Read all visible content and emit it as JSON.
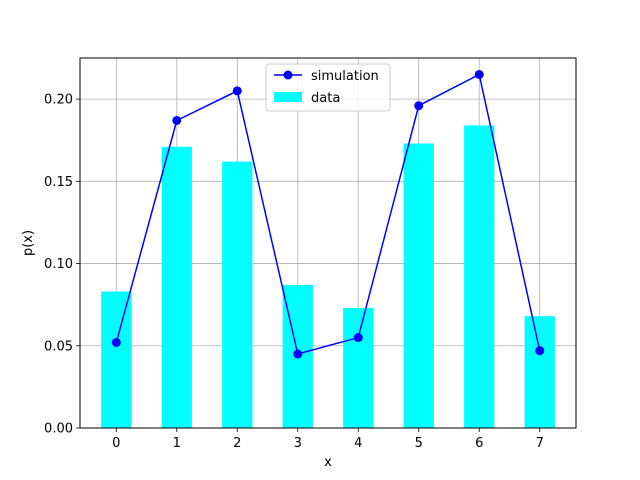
{
  "chart_data": {
    "type": "bar",
    "title": "",
    "xlabel": "x",
    "ylabel": "p(x)",
    "x": [
      0,
      1,
      2,
      3,
      4,
      5,
      6,
      7
    ],
    "xlim": [
      -0.6,
      7.6
    ],
    "ylim": [
      0,
      0.225
    ],
    "xticks": [
      "0",
      "1",
      "2",
      "3",
      "4",
      "5",
      "6",
      "7"
    ],
    "yticks": [
      "0.00",
      "0.05",
      "0.10",
      "0.15",
      "0.20"
    ],
    "grid": true,
    "legend_position": "top-center",
    "series": [
      {
        "name": "simulation",
        "kind": "line",
        "marker": "circle",
        "color": "#0000ff",
        "values": [
          0.052,
          0.187,
          0.205,
          0.045,
          0.055,
          0.196,
          0.215,
          0.047
        ]
      },
      {
        "name": "data",
        "kind": "bar",
        "color": "#00ffff",
        "values": [
          0.083,
          0.171,
          0.162,
          0.087,
          0.073,
          0.173,
          0.184,
          0.068
        ]
      }
    ]
  }
}
